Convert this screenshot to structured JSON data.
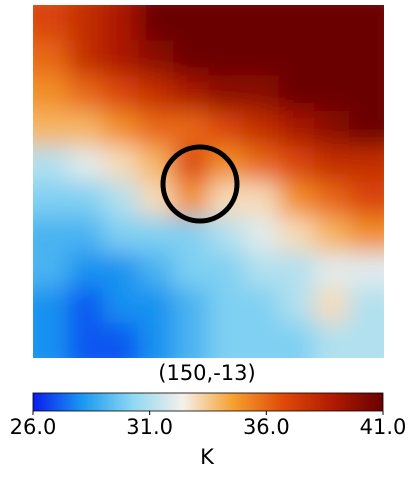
{
  "chart_data": {
    "type": "heatmap",
    "title": "(150,-13)",
    "colorbar_label": "K",
    "clim": [
      26,
      41
    ],
    "colormap": [
      "#0a1cf0",
      "#1a9af0",
      "#8fd8f2",
      "#f5f0ea",
      "#f7a030",
      "#e04a08",
      "#b01a00",
      "#6a0000"
    ],
    "colorbar_ticks": [
      {
        "value": 26,
        "label": "26.0"
      },
      {
        "value": 31,
        "label": "31.0"
      },
      {
        "value": 36,
        "label": "36.0"
      },
      {
        "value": 41,
        "label": "41.0"
      }
    ],
    "z": [
      [
        37,
        38,
        39,
        41,
        41,
        41,
        41,
        41,
        41,
        41
      ],
      [
        36,
        38,
        39,
        40,
        41,
        41,
        41,
        41,
        41,
        41
      ],
      [
        35,
        36,
        37,
        38,
        39,
        40,
        40,
        41,
        41,
        41
      ],
      [
        34,
        34,
        35,
        36,
        36,
        37,
        38,
        39,
        40,
        41
      ],
      [
        31,
        32,
        33,
        34,
        37,
        35,
        36,
        37,
        38,
        38
      ],
      [
        30,
        30,
        31,
        33,
        35,
        33,
        33,
        35,
        36,
        37
      ],
      [
        29,
        29,
        30,
        30,
        30,
        31,
        32,
        33,
        34,
        35
      ],
      [
        29,
        28,
        28,
        29,
        30,
        30,
        31,
        31,
        32,
        32
      ],
      [
        28,
        27,
        28,
        28,
        29,
        30,
        30,
        31,
        33,
        31
      ],
      [
        28,
        27,
        27,
        28,
        29,
        30,
        30,
        30,
        31,
        31
      ]
    ]
  }
}
